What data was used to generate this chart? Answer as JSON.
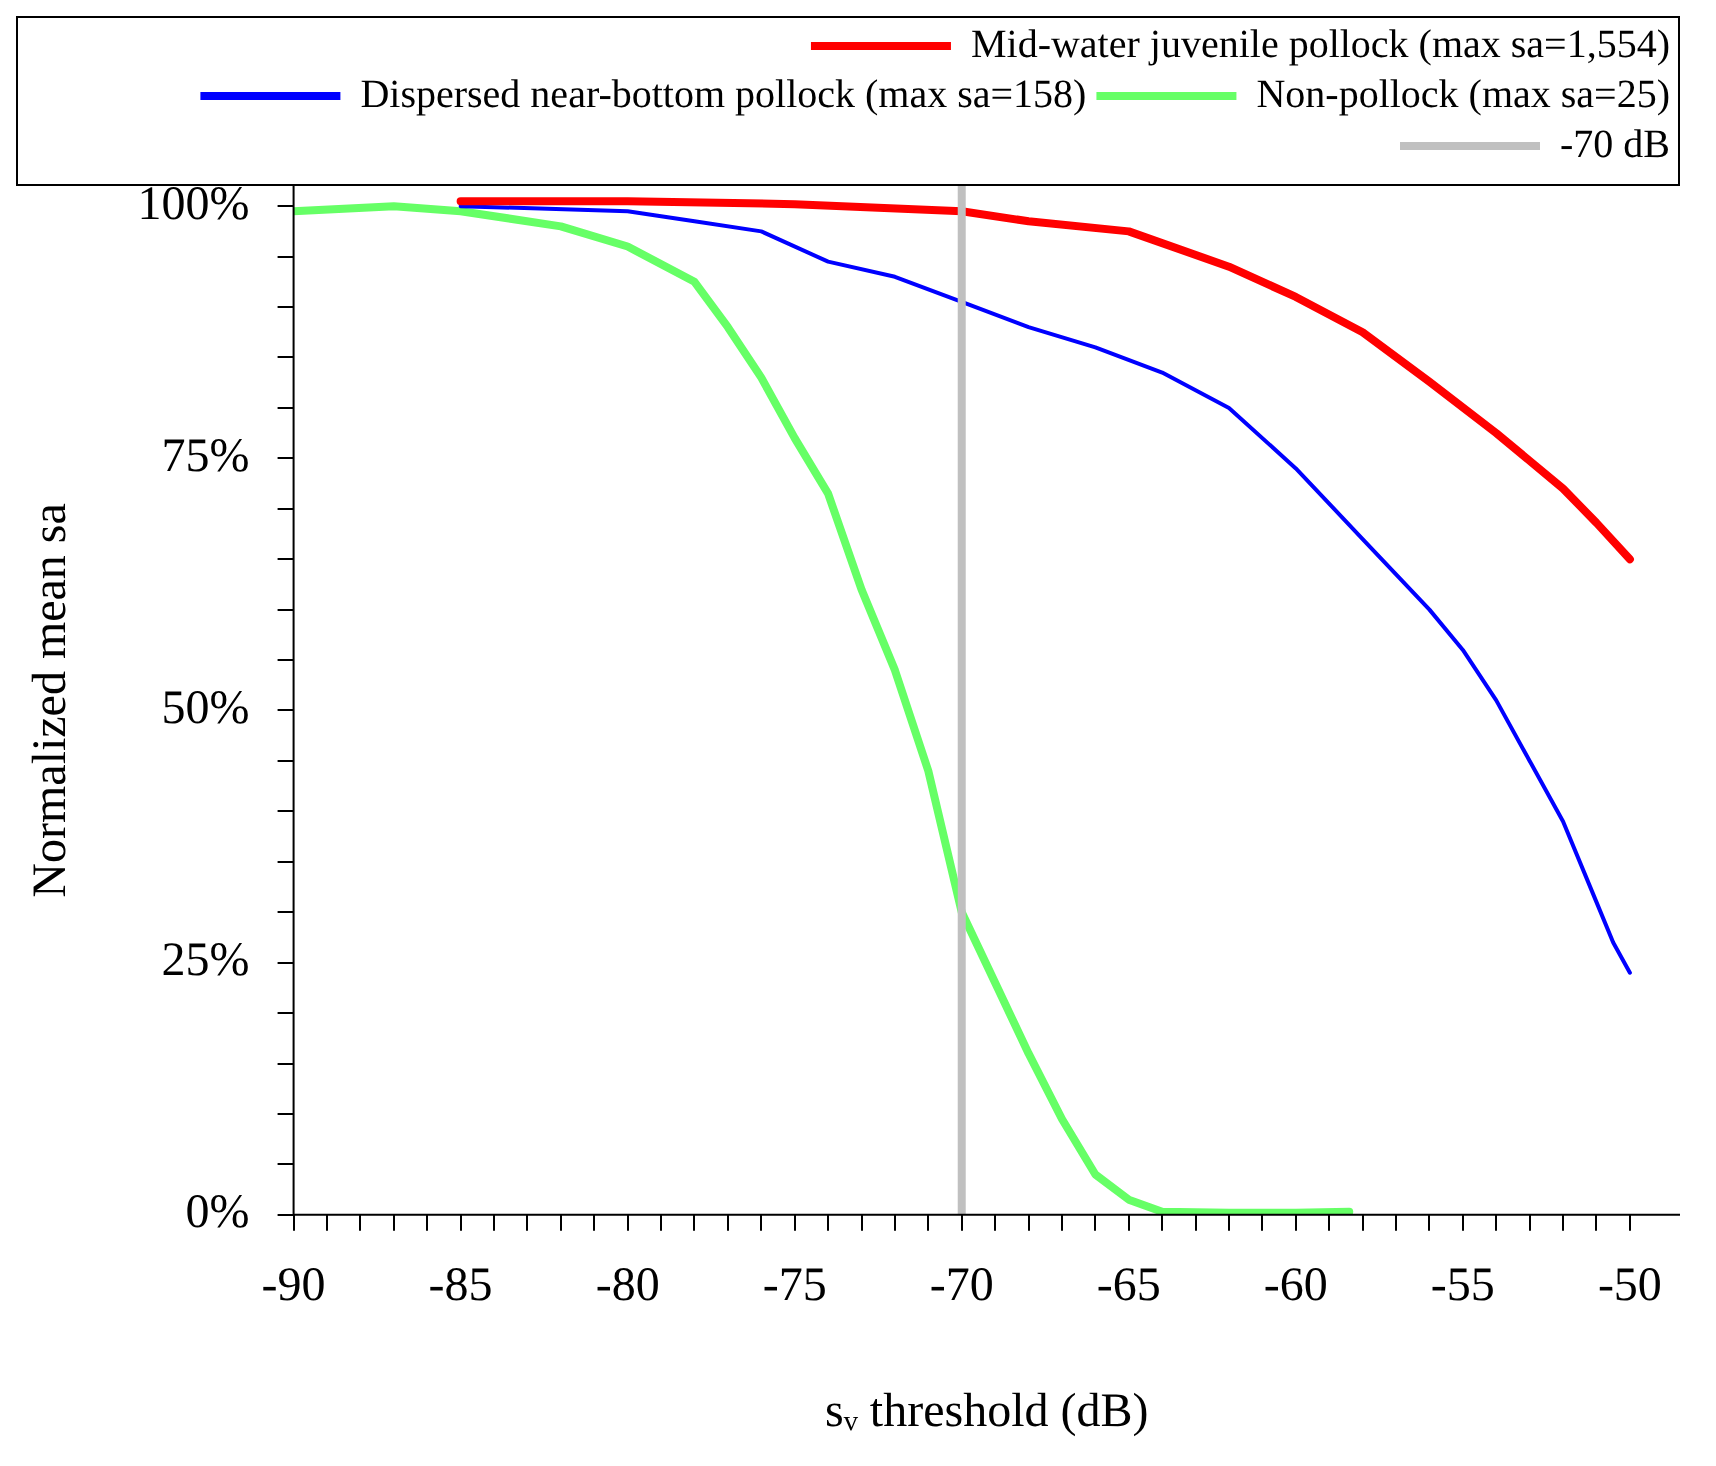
{
  "chart_data": {
    "type": "line",
    "xlabel": "sᵥ threshold (dB)",
    "ylabel": "Normalized mean sa",
    "series": [
      {
        "name": "Mid-water juvenile pollock (max sa=1,554)",
        "color": "#ff0000",
        "x": [
          -85,
          -80,
          -75,
          -70,
          -68,
          -65,
          -62,
          -60,
          -58,
          -56,
          -54,
          -52,
          -51,
          -50
        ],
        "values": [
          100.5,
          100.5,
          100.2,
          99.5,
          98.5,
          97.5,
          94,
          91,
          87.5,
          82.6,
          77.5,
          72,
          68.6,
          65
        ]
      },
      {
        "name": "Dispersed near-bottom pollock (max sa=158)",
        "color": "#0000ff",
        "x": [
          -85,
          -80,
          -78,
          -76,
          -74,
          -72,
          -70,
          -68,
          -66,
          -64,
          -62,
          -60,
          -58,
          -56,
          -55,
          -54,
          -53,
          -52,
          -51,
          -50.5,
          -50
        ],
        "values": [
          100,
          99.5,
          98.5,
          97.5,
          94.5,
          93,
          90.5,
          88,
          86,
          83.5,
          80,
          74,
          67,
          60,
          56,
          51,
          45,
          39,
          31,
          27,
          24
        ]
      },
      {
        "name": "Non-pollock (max sa=25)",
        "color": "#66ff66",
        "x": [
          -90,
          -87,
          -85,
          -82,
          -80,
          -78,
          -77,
          -76,
          -75,
          -74,
          -73,
          -72,
          -71,
          -70,
          -69,
          -68,
          -67,
          -66,
          -65,
          -64,
          -62,
          -60,
          -58.4
        ],
        "values": [
          99.5,
          100,
          99.5,
          98,
          96,
          92.5,
          88,
          83,
          77,
          71.5,
          62,
          54,
          44,
          30,
          23,
          16,
          9.5,
          4,
          1.5,
          0.3,
          0.2,
          0.2,
          0.3
        ]
      }
    ],
    "ref_lines": [
      {
        "axis": "x",
        "value": -70,
        "label": "-70 dB",
        "color": "#c0c0c0"
      }
    ],
    "xlim": [
      -90,
      -48.5
    ],
    "xticks": [
      -90,
      {
        "value": -89,
        "label": null
      },
      {
        "value": -88,
        "label": null
      },
      {
        "value": -87,
        "label": null
      },
      {
        "value": -86,
        "label": null
      },
      -85,
      {
        "value": -84,
        "label": null
      },
      {
        "value": -83,
        "label": null
      },
      {
        "value": -82,
        "label": null
      },
      {
        "value": -81,
        "label": null
      },
      -80,
      {
        "value": -79,
        "label": null
      },
      {
        "value": -78,
        "label": null
      },
      {
        "value": -77,
        "label": null
      },
      {
        "value": -76,
        "label": null
      },
      -75,
      {
        "value": -74,
        "label": null
      },
      {
        "value": -73,
        "label": null
      },
      {
        "value": -72,
        "label": null
      },
      {
        "value": -71,
        "label": null
      },
      -70,
      {
        "value": -69,
        "label": null
      },
      {
        "value": -68,
        "label": null
      },
      {
        "value": -67,
        "label": null
      },
      {
        "value": -66,
        "label": null
      },
      -65,
      {
        "value": -64,
        "label": null
      },
      {
        "value": -63,
        "label": null
      },
      {
        "value": -62,
        "label": null
      },
      {
        "value": -61,
        "label": null
      },
      -60,
      {
        "value": -59,
        "label": null
      },
      {
        "value": -58,
        "label": null
      },
      {
        "value": -57,
        "label": null
      },
      {
        "value": -56,
        "label": null
      },
      -55,
      {
        "value": -54,
        "label": null
      },
      {
        "value": -53,
        "label": null
      },
      {
        "value": -52,
        "label": null
      },
      {
        "value": -51,
        "label": null
      },
      -50
    ],
    "ylim": [
      0,
      102
    ],
    "yticks": [
      {
        "value": 0,
        "label": "0%"
      },
      {
        "value": 5,
        "label": null
      },
      {
        "value": 10,
        "label": null
      },
      {
        "value": 15,
        "label": null
      },
      {
        "value": 20,
        "label": null
      },
      {
        "value": 25,
        "label": "25%"
      },
      {
        "value": 30,
        "label": null
      },
      {
        "value": 35,
        "label": null
      },
      {
        "value": 40,
        "label": null
      },
      {
        "value": 45,
        "label": null
      },
      {
        "value": 50,
        "label": "50%"
      },
      {
        "value": 55,
        "label": null
      },
      {
        "value": 60,
        "label": null
      },
      {
        "value": 65,
        "label": null
      },
      {
        "value": 70,
        "label": null
      },
      {
        "value": 75,
        "label": "75%"
      },
      {
        "value": 80,
        "label": null
      },
      {
        "value": 85,
        "label": null
      },
      {
        "value": 90,
        "label": null
      },
      {
        "value": 95,
        "label": null
      },
      {
        "value": 100,
        "label": "100%"
      }
    ],
    "grid": false,
    "legend": "top right",
    "marker": "none",
    "line_style": "solid"
  }
}
